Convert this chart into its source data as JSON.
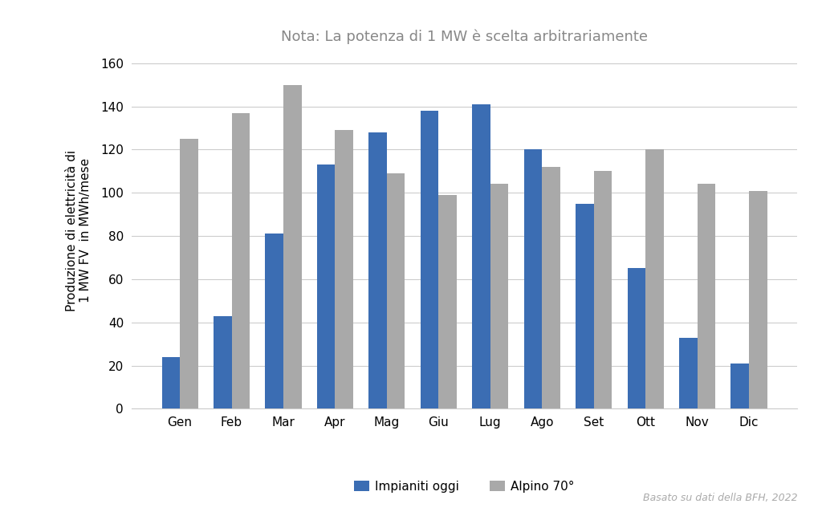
{
  "title": "Nota: La potenza di 1 MW è scelta arbitrariamente",
  "ylabel_line1": "Produzione di elettricità di",
  "ylabel_line2": "1 MW FV  in MWh/mese",
  "categories": [
    "Gen",
    "Feb",
    "Mar",
    "Apr",
    "Mag",
    "Giu",
    "Lug",
    "Ago",
    "Set",
    "Ott",
    "Nov",
    "Dic"
  ],
  "series1_label": "Impianiti oggi",
  "series2_label": "Alpino 70°",
  "series1_values": [
    24,
    43,
    81,
    113,
    128,
    138,
    141,
    120,
    95,
    65,
    33,
    21
  ],
  "series2_values": [
    125,
    137,
    150,
    129,
    109,
    99,
    104,
    112,
    110,
    120,
    104,
    101
  ],
  "series1_color": "#3B6DB3",
  "series2_color": "#A9A9A9",
  "ylim": [
    0,
    165
  ],
  "yticks": [
    0,
    20,
    40,
    60,
    80,
    100,
    120,
    140,
    160
  ],
  "footnote": "Basato su dati della BFH, 2022",
  "background_color": "#FFFFFF",
  "grid_color": "#CCCCCC",
  "title_fontsize": 13,
  "label_fontsize": 11,
  "tick_fontsize": 11,
  "legend_fontsize": 11,
  "footnote_fontsize": 9,
  "bar_width": 0.35
}
